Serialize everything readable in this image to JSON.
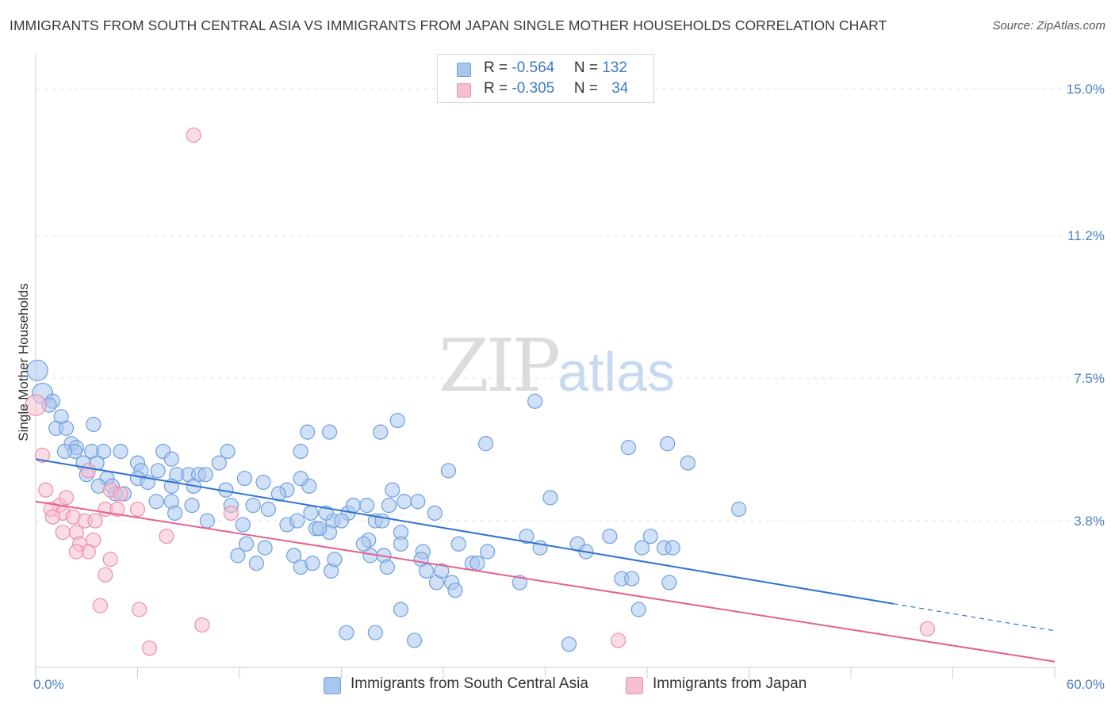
{
  "header": {
    "title": "IMMIGRANTS FROM SOUTH CENTRAL ASIA VS IMMIGRANTS FROM JAPAN SINGLE MOTHER HOUSEHOLDS CORRELATION CHART",
    "source": "Source: ZipAtlas.com"
  },
  "watermark": {
    "part1": "ZIP",
    "part2": "atlas"
  },
  "legend": {
    "rows": [
      {
        "r_label": "R = ",
        "r_value": "-0.564",
        "n_label": "N = ",
        "n_value": "132"
      },
      {
        "r_label": "R = ",
        "r_value": "-0.305",
        "n_label": "N = ",
        "n_value": "34"
      }
    ]
  },
  "colors": {
    "blue_fill": "#a9c6ee",
    "blue_stroke": "#6f9fdc",
    "blue_line": "#2f72d0",
    "pink_fill": "#f6bfd0",
    "pink_stroke": "#ec8fad",
    "pink_line": "#e2628f",
    "tick_text": "#4a7fc8",
    "grid": "#e3e3e3"
  },
  "chart_data": {
    "type": "scatter",
    "title": "IMMIGRANTS FROM SOUTH CENTRAL ASIA VS IMMIGRANTS FROM JAPAN SINGLE MOTHER HOUSEHOLDS CORRELATION CHART",
    "xlabel": "",
    "ylabel": "Single Mother Households",
    "xlim": [
      0,
      60
    ],
    "ylim": [
      0,
      15.7
    ],
    "x_tick_labels": [
      "0.0%",
      "60.0%"
    ],
    "y_ticks": [
      {
        "value": 3.8,
        "label": "3.8%"
      },
      {
        "value": 7.5,
        "label": "7.5%"
      },
      {
        "value": 11.2,
        "label": "11.2%"
      },
      {
        "value": 15.0,
        "label": "15.0%"
      }
    ],
    "legend_position": "top-center",
    "grid": true,
    "series": [
      {
        "name": "Immigrants from South Central Asia",
        "r": -0.564,
        "n": 132,
        "trend": {
          "x0": 0,
          "y0": 5.4,
          "x1": 50.5,
          "y1": 1.65,
          "x_dash_end": 60,
          "y_dash_end": 0.95
        },
        "points": [
          [
            0.1,
            7.7
          ],
          [
            0.4,
            7.1
          ],
          [
            1.0,
            6.9
          ],
          [
            0.8,
            6.8
          ],
          [
            1.5,
            6.5
          ],
          [
            1.2,
            6.2
          ],
          [
            1.8,
            6.2
          ],
          [
            3.4,
            6.3
          ],
          [
            2.1,
            5.8
          ],
          [
            2.4,
            5.7
          ],
          [
            2.3,
            5.6
          ],
          [
            1.7,
            5.6
          ],
          [
            3.3,
            5.6
          ],
          [
            4.0,
            5.6
          ],
          [
            5.0,
            5.6
          ],
          [
            3.6,
            5.3
          ],
          [
            2.8,
            5.3
          ],
          [
            6.0,
            5.3
          ],
          [
            7.5,
            5.6
          ],
          [
            8.0,
            5.4
          ],
          [
            11.3,
            5.6
          ],
          [
            10.8,
            5.3
          ],
          [
            6.2,
            5.1
          ],
          [
            7.2,
            5.1
          ],
          [
            3.0,
            5.0
          ],
          [
            4.2,
            4.9
          ],
          [
            6.0,
            4.9
          ],
          [
            6.6,
            4.8
          ],
          [
            8.3,
            5.0
          ],
          [
            9.0,
            5.0
          ],
          [
            9.6,
            5.0
          ],
          [
            10.0,
            5.0
          ],
          [
            12.3,
            4.9
          ],
          [
            13.4,
            4.8
          ],
          [
            3.7,
            4.7
          ],
          [
            4.5,
            4.7
          ],
          [
            8.0,
            4.7
          ],
          [
            9.3,
            4.7
          ],
          [
            11.2,
            4.6
          ],
          [
            14.8,
            4.6
          ],
          [
            14.3,
            4.5
          ],
          [
            4.7,
            4.5
          ],
          [
            5.2,
            4.5
          ],
          [
            7.1,
            4.3
          ],
          [
            8.0,
            4.3
          ],
          [
            11.5,
            4.2
          ],
          [
            12.8,
            4.2
          ],
          [
            13.7,
            4.1
          ],
          [
            8.2,
            4.0
          ],
          [
            10.1,
            3.8
          ],
          [
            12.2,
            3.7
          ],
          [
            14.8,
            3.7
          ],
          [
            15.4,
            3.8
          ],
          [
            16.5,
            3.6
          ],
          [
            17.5,
            3.8
          ],
          [
            16.2,
            4.0
          ],
          [
            17.1,
            4.0
          ],
          [
            18.4,
            4.0
          ],
          [
            18.7,
            4.2
          ],
          [
            19.5,
            4.2
          ],
          [
            20.8,
            4.2
          ],
          [
            18.0,
            3.8
          ],
          [
            20.0,
            3.8
          ],
          [
            20.4,
            3.8
          ],
          [
            21.5,
            3.5
          ],
          [
            22.5,
            4.3
          ],
          [
            23.5,
            4.0
          ],
          [
            21.5,
            3.2
          ],
          [
            22.8,
            3.0
          ],
          [
            19.6,
            3.3
          ],
          [
            17.3,
            3.5
          ],
          [
            16.7,
            3.6
          ],
          [
            13.5,
            3.1
          ],
          [
            12.4,
            3.2
          ],
          [
            11.9,
            2.9
          ],
          [
            13.0,
            2.7
          ],
          [
            15.2,
            2.9
          ],
          [
            15.6,
            2.6
          ],
          [
            16.3,
            2.7
          ],
          [
            17.4,
            2.5
          ],
          [
            17.6,
            2.8
          ],
          [
            19.7,
            2.9
          ],
          [
            20.5,
            2.9
          ],
          [
            20.7,
            2.6
          ],
          [
            22.7,
            2.8
          ],
          [
            23.0,
            2.5
          ],
          [
            23.6,
            2.2
          ],
          [
            23.9,
            2.5
          ],
          [
            24.5,
            2.2
          ],
          [
            24.7,
            2.0
          ],
          [
            25.7,
            2.7
          ],
          [
            26.0,
            2.7
          ],
          [
            24.9,
            3.2
          ],
          [
            28.9,
            3.4
          ],
          [
            26.6,
            3.0
          ],
          [
            29.7,
            3.1
          ],
          [
            31.9,
            3.2
          ],
          [
            30.3,
            4.4
          ],
          [
            32.4,
            3.0
          ],
          [
            33.8,
            3.4
          ],
          [
            34.5,
            2.3
          ],
          [
            35.1,
            2.3
          ],
          [
            35.5,
            1.5
          ],
          [
            35.7,
            3.1
          ],
          [
            36.2,
            3.4
          ],
          [
            37.0,
            3.1
          ],
          [
            37.3,
            2.2
          ],
          [
            37.5,
            3.1
          ],
          [
            41.4,
            4.1
          ],
          [
            34.9,
            5.7
          ],
          [
            38.4,
            5.3
          ],
          [
            37.2,
            5.8
          ],
          [
            29.4,
            6.9
          ],
          [
            26.5,
            5.8
          ],
          [
            24.3,
            5.1
          ],
          [
            21.0,
            4.6
          ],
          [
            21.7,
            4.3
          ],
          [
            21.3,
            6.4
          ],
          [
            20.3,
            6.1
          ],
          [
            17.3,
            6.1
          ],
          [
            16.0,
            6.1
          ],
          [
            15.6,
            5.6
          ],
          [
            16.1,
            4.7
          ],
          [
            19.3,
            3.2
          ],
          [
            20.0,
            0.9
          ],
          [
            21.5,
            1.5
          ],
          [
            22.3,
            0.7
          ],
          [
            31.4,
            0.6
          ],
          [
            18.3,
            0.9
          ],
          [
            15.6,
            4.9
          ],
          [
            28.5,
            2.2
          ],
          [
            9.2,
            4.2
          ]
        ]
      },
      {
        "name": "Immigrants from Japan",
        "r": -0.305,
        "n": 34,
        "trend": {
          "x0": 0,
          "y0": 4.3,
          "x1": 60,
          "y1": 0.15
        },
        "points": [
          [
            0.0,
            6.8
          ],
          [
            0.4,
            5.5
          ],
          [
            0.6,
            4.6
          ],
          [
            1.4,
            4.2
          ],
          [
            1.8,
            4.4
          ],
          [
            0.9,
            4.1
          ],
          [
            1.6,
            4.0
          ],
          [
            1.0,
            3.9
          ],
          [
            2.2,
            3.9
          ],
          [
            2.9,
            3.8
          ],
          [
            3.5,
            3.8
          ],
          [
            1.6,
            3.5
          ],
          [
            2.4,
            3.5
          ],
          [
            3.4,
            3.3
          ],
          [
            2.6,
            3.2
          ],
          [
            3.1,
            3.0
          ],
          [
            2.4,
            3.0
          ],
          [
            4.1,
            4.1
          ],
          [
            4.4,
            4.6
          ],
          [
            4.8,
            4.1
          ],
          [
            5.0,
            4.5
          ],
          [
            6.0,
            4.1
          ],
          [
            7.7,
            3.4
          ],
          [
            9.8,
            1.1
          ],
          [
            4.4,
            2.8
          ],
          [
            4.1,
            2.4
          ],
          [
            3.8,
            1.6
          ],
          [
            6.1,
            1.5
          ],
          [
            6.7,
            0.5
          ],
          [
            11.5,
            4.0
          ],
          [
            9.3,
            13.8
          ],
          [
            34.3,
            0.7
          ],
          [
            52.5,
            1.0
          ],
          [
            3.1,
            5.1
          ]
        ]
      }
    ]
  },
  "bottom_legend": {
    "items": [
      {
        "label": "Immigrants from South Central Asia"
      },
      {
        "label": "Immigrants from Japan"
      }
    ]
  }
}
